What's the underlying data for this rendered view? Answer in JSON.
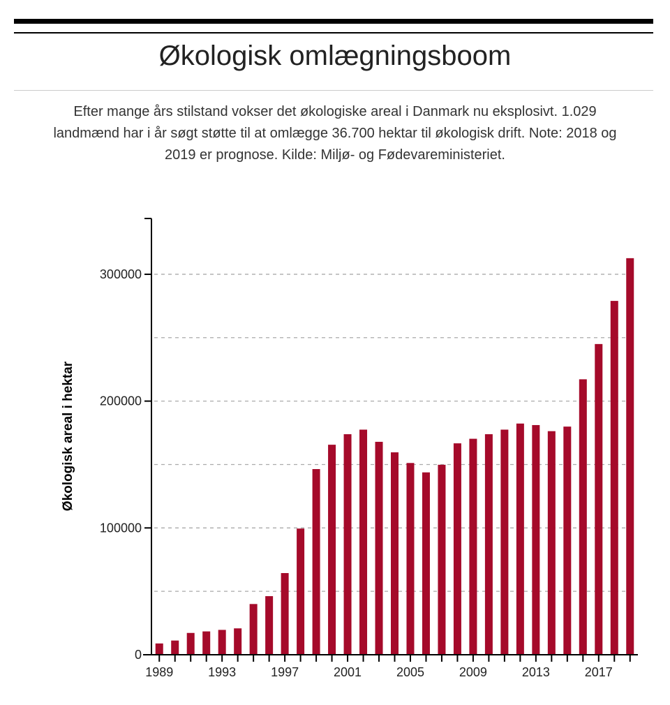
{
  "header": {
    "title": "Økologisk omlægningsboom",
    "subtitle": "Efter mange års stilstand vokser det økologiske areal i Danmark nu eksplosivt. 1.029 landmænd har i år søgt støtte til at omlægge 36.700 hektar til økologisk drift. Note: 2018 og 2019 er prognose. Kilde: Miljø- og Fødevareministeriet."
  },
  "chart_data": {
    "type": "bar",
    "title": "Økologisk omlægningsboom",
    "xlabel": "",
    "ylabel": "Økologisk areal i hektar",
    "categories": [
      1989,
      1990,
      1991,
      1992,
      1993,
      1994,
      1995,
      1996,
      1997,
      1998,
      1999,
      2000,
      2001,
      2002,
      2003,
      2004,
      2005,
      2006,
      2007,
      2008,
      2009,
      2010,
      2011,
      2012,
      2013,
      2014,
      2015,
      2016,
      2017,
      2018,
      2019
    ],
    "values": [
      8900,
      11200,
      17200,
      18400,
      19600,
      20800,
      40000,
      46200,
      64400,
      99500,
      146400,
      165600,
      173900,
      177500,
      167900,
      159600,
      151200,
      143800,
      149800,
      166700,
      170300,
      173900,
      177500,
      182300,
      181100,
      176300,
      179900,
      217200,
      245000,
      279000,
      312700
    ],
    "x_tick_labels": [
      "1989",
      "1993",
      "1997",
      "2001",
      "2005",
      "2009",
      "2013",
      "2017"
    ],
    "y_tick_labels": [
      "0",
      "100000",
      "200000",
      "300000"
    ],
    "y_ticks": [
      0,
      100000,
      200000,
      300000
    ],
    "gridlines": [
      50000,
      100000,
      150000,
      200000,
      250000,
      300000
    ],
    "ylim": [
      0,
      344000
    ],
    "grid": true,
    "bar_color": "#a50a2a"
  }
}
